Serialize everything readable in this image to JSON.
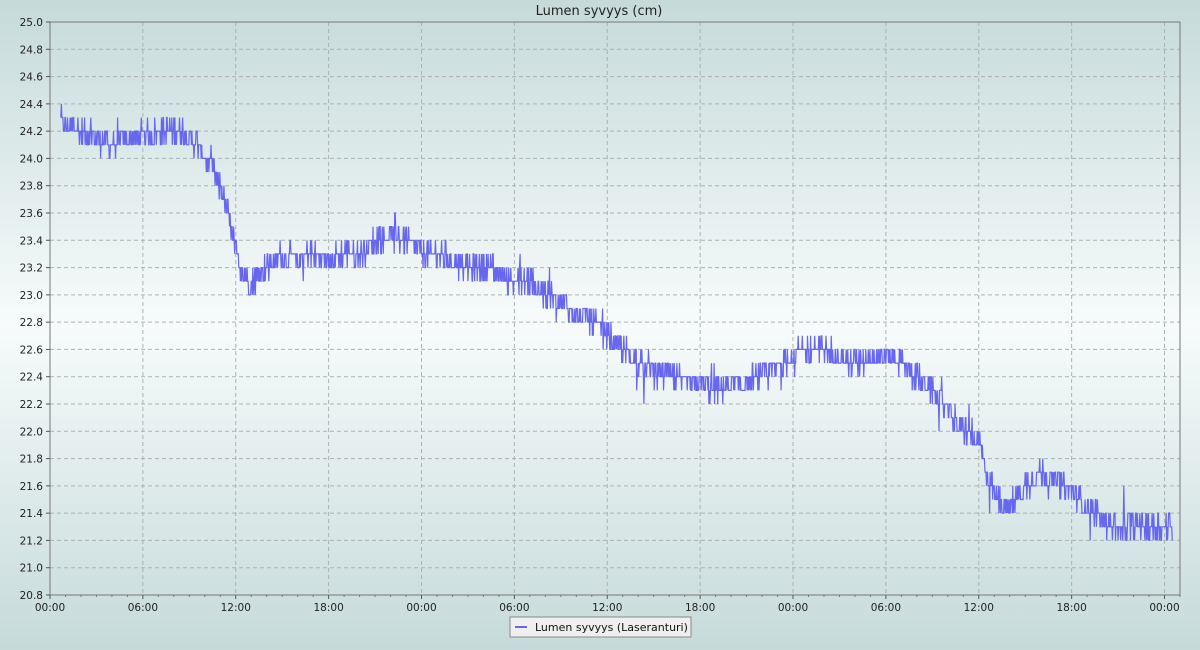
{
  "chart_data": {
    "type": "line",
    "title": "Lumen syvyys (cm)",
    "xlabel": "",
    "ylabel": "",
    "ylim": [
      20.8,
      25.0
    ],
    "y_ticks": [
      "20.8",
      "21.0",
      "21.2",
      "21.4",
      "21.6",
      "21.8",
      "22.0",
      "22.2",
      "22.4",
      "22.6",
      "22.8",
      "23.0",
      "23.2",
      "23.4",
      "23.6",
      "23.8",
      "24.0",
      "24.2",
      "24.4",
      "24.6",
      "24.8",
      "25.0"
    ],
    "xlim_hours": [
      0,
      73
    ],
    "x_ticks": [
      {
        "hour": 0,
        "label": "00:00"
      },
      {
        "hour": 6,
        "label": "06:00"
      },
      {
        "hour": 12,
        "label": "12:00"
      },
      {
        "hour": 18,
        "label": "18:00"
      },
      {
        "hour": 24,
        "label": "00:00"
      },
      {
        "hour": 30,
        "label": "06:00"
      },
      {
        "hour": 36,
        "label": "12:00"
      },
      {
        "hour": 42,
        "label": "18:00"
      },
      {
        "hour": 48,
        "label": "00:00"
      },
      {
        "hour": 54,
        "label": "06:00"
      },
      {
        "hour": 60,
        "label": "12:00"
      },
      {
        "hour": 66,
        "label": "18:00"
      },
      {
        "hour": 72,
        "label": "00:00"
      }
    ],
    "grid": true,
    "legend_position": "bottom-center",
    "series": [
      {
        "name": "Lumen syvyys (Laseranturi)",
        "color": "#6666ee",
        "hours": [
          0.7,
          1,
          2,
          3,
          4,
          5,
          6,
          7,
          8,
          8.5,
          9,
          9.5,
          10,
          10.5,
          11,
          11.5,
          12,
          12.5,
          13,
          14,
          15,
          16,
          17,
          18,
          19,
          20,
          21,
          22,
          23,
          24,
          25,
          26,
          27,
          28,
          29,
          30,
          31,
          32,
          33,
          34,
          35,
          36,
          37,
          38,
          39,
          40,
          41,
          42,
          43,
          44,
          45,
          46,
          47,
          48,
          49,
          50,
          51,
          52,
          53,
          54,
          55,
          56,
          57,
          58,
          59,
          59.5,
          60,
          60.5,
          61,
          61.5,
          62,
          63,
          64,
          65,
          66,
          67,
          68,
          69,
          70,
          71,
          72,
          72.5
        ],
        "values": [
          24.25,
          24.25,
          24.2,
          24.15,
          24.1,
          24.15,
          24.15,
          24.2,
          24.2,
          24.2,
          24.15,
          24.1,
          24.0,
          23.9,
          23.8,
          23.6,
          23.3,
          23.15,
          23.1,
          23.2,
          23.3,
          23.25,
          23.3,
          23.25,
          23.3,
          23.3,
          23.4,
          23.45,
          23.4,
          23.3,
          23.3,
          23.25,
          23.2,
          23.2,
          23.15,
          23.1,
          23.1,
          23.0,
          22.95,
          22.85,
          22.8,
          22.7,
          22.6,
          22.5,
          22.45,
          22.4,
          22.35,
          22.35,
          22.3,
          22.35,
          22.35,
          22.4,
          22.45,
          22.55,
          22.6,
          22.6,
          22.55,
          22.5,
          22.55,
          22.55,
          22.5,
          22.4,
          22.3,
          22.15,
          22.0,
          22.0,
          21.9,
          21.7,
          21.55,
          21.45,
          21.45,
          21.6,
          21.7,
          21.65,
          21.55,
          21.45,
          21.35,
          21.3,
          21.3,
          21.3,
          21.3,
          21.3
        ],
        "noise": 0.09
      }
    ]
  }
}
